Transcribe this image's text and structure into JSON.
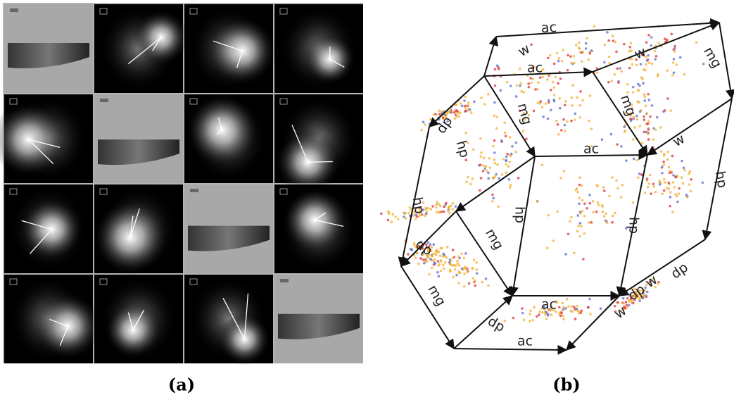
{
  "panel_a": {
    "label": "(a)"
  },
  "panel_b": {
    "label": "(b)",
    "edge_labels": [
      "ac",
      "w",
      "w",
      "mg",
      "ac",
      "mg",
      "mg",
      "dp",
      "hp",
      "ac",
      "w",
      "hp",
      "hp",
      "hp",
      "hp",
      "mg",
      "dp",
      "mg",
      "ac",
      "dp",
      "w",
      "dp",
      "w",
      "dp",
      "ac"
    ]
  }
}
